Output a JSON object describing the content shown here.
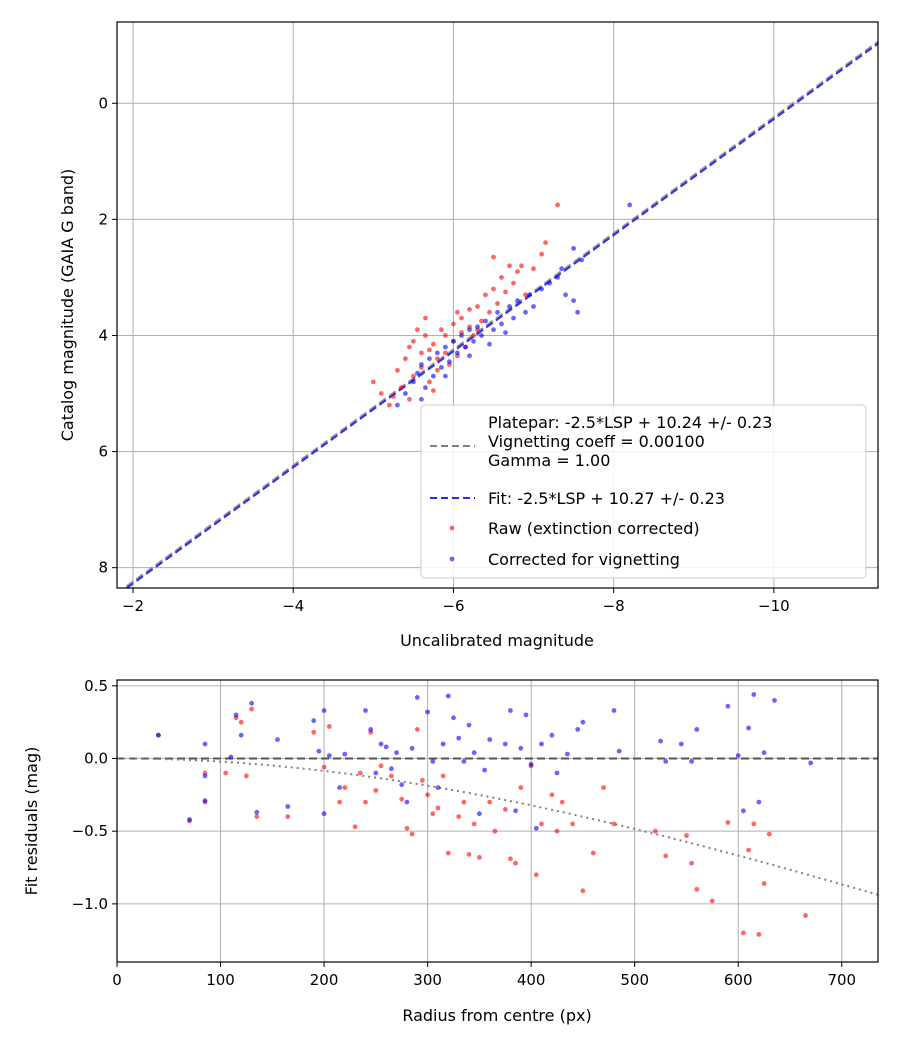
{
  "chart_data": [
    {
      "type": "scatter",
      "xlabel": "Uncalibrated magnitude",
      "ylabel": "Catalog magnitude (GAIA G band)",
      "xlim": [
        -1.8,
        -11.3
      ],
      "ylim": [
        8.35,
        -1.4
      ],
      "x_inverted": true,
      "y_inverted": true,
      "grid": true,
      "legend_placement": "lower-right",
      "xticks": [
        -2,
        -4,
        -6,
        -8,
        -10
      ],
      "yticks": [
        0,
        2,
        4,
        6,
        8
      ],
      "xtick_labels": [
        "−2",
        "−4",
        "−6",
        "−8",
        "−10"
      ],
      "ytick_labels": [
        "0",
        "2",
        "4",
        "6",
        "8"
      ],
      "lines": [
        {
          "name": "Platepar: -2.5*LSP + 10.24 +/- 0.23\nVignetting coeff = 0.00100\nGamma = 1.00",
          "slope": 1.0,
          "intercept": 10.24,
          "color": "#808080",
          "style": "dashed"
        },
        {
          "name": "Fit: -2.5*LSP + 10.27 +/- 0.23",
          "slope": 1.0,
          "intercept": 10.27,
          "color": "#2b2bd9",
          "style": "dashed"
        }
      ],
      "series": [
        {
          "name": "Raw (extinction corrected)",
          "color": "#ff0000",
          "points": [
            [
              -5.0,
              4.8
            ],
            [
              -5.1,
              5.0
            ],
            [
              -5.2,
              5.2
            ],
            [
              -5.3,
              4.6
            ],
            [
              -5.35,
              4.9
            ],
            [
              -5.4,
              4.4
            ],
            [
              -5.45,
              4.2
            ],
            [
              -5.5,
              4.1
            ],
            [
              -5.5,
              4.7
            ],
            [
              -5.55,
              3.9
            ],
            [
              -5.6,
              4.3
            ],
            [
              -5.6,
              4.55
            ],
            [
              -5.65,
              4.0
            ],
            [
              -5.7,
              4.25
            ],
            [
              -5.7,
              4.8
            ],
            [
              -5.75,
              4.15
            ],
            [
              -5.8,
              4.4
            ],
            [
              -5.8,
              4.6
            ],
            [
              -5.85,
              3.9
            ],
            [
              -5.9,
              4.0
            ],
            [
              -5.9,
              4.3
            ],
            [
              -5.95,
              4.5
            ],
            [
              -6.0,
              3.8
            ],
            [
              -6.0,
              4.1
            ],
            [
              -6.05,
              4.35
            ],
            [
              -6.1,
              3.7
            ],
            [
              -6.1,
              3.95
            ],
            [
              -6.15,
              4.2
            ],
            [
              -6.2,
              3.55
            ],
            [
              -6.2,
              3.85
            ],
            [
              -6.25,
              4.0
            ],
            [
              -6.3,
              3.5
            ],
            [
              -6.35,
              3.75
            ],
            [
              -6.4,
              3.3
            ],
            [
              -6.45,
              3.6
            ],
            [
              -6.5,
              3.2
            ],
            [
              -6.5,
              2.65
            ],
            [
              -6.55,
              3.45
            ],
            [
              -6.6,
              3.0
            ],
            [
              -6.65,
              3.25
            ],
            [
              -6.7,
              2.8
            ],
            [
              -6.75,
              3.1
            ],
            [
              -6.8,
              2.9
            ],
            [
              -6.85,
              2.8
            ],
            [
              -6.9,
              3.3
            ],
            [
              -7.0,
              2.85
            ],
            [
              -7.1,
              2.6
            ],
            [
              -7.15,
              2.4
            ],
            [
              -7.3,
              1.75
            ],
            [
              -5.25,
              5.05
            ],
            [
              -5.65,
              3.7
            ],
            [
              -5.75,
              4.95
            ],
            [
              -6.05,
              3.6
            ],
            [
              -6.3,
              3.9
            ],
            [
              -5.45,
              5.1
            ]
          ]
        },
        {
          "name": "Corrected for vignetting",
          "color": "#0000ff",
          "points": [
            [
              -5.3,
              5.2
            ],
            [
              -5.4,
              5.0
            ],
            [
              -5.5,
              4.8
            ],
            [
              -5.55,
              4.65
            ],
            [
              -5.6,
              4.5
            ],
            [
              -5.65,
              4.9
            ],
            [
              -5.7,
              4.4
            ],
            [
              -5.75,
              4.7
            ],
            [
              -5.8,
              4.3
            ],
            [
              -5.85,
              4.55
            ],
            [
              -5.9,
              4.2
            ],
            [
              -5.95,
              4.45
            ],
            [
              -6.0,
              4.1
            ],
            [
              -6.05,
              4.3
            ],
            [
              -6.1,
              4.0
            ],
            [
              -6.15,
              4.2
            ],
            [
              -6.2,
              3.9
            ],
            [
              -6.25,
              4.1
            ],
            [
              -6.3,
              3.85
            ],
            [
              -6.35,
              4.0
            ],
            [
              -6.4,
              3.75
            ],
            [
              -6.5,
              3.9
            ],
            [
              -6.55,
              3.6
            ],
            [
              -6.6,
              3.8
            ],
            [
              -6.7,
              3.5
            ],
            [
              -6.75,
              3.7
            ],
            [
              -6.8,
              3.4
            ],
            [
              -6.9,
              3.6
            ],
            [
              -6.95,
              3.3
            ],
            [
              -7.0,
              3.5
            ],
            [
              -7.1,
              3.2
            ],
            [
              -7.2,
              3.1
            ],
            [
              -7.3,
              3.0
            ],
            [
              -7.35,
              2.85
            ],
            [
              -7.4,
              3.3
            ],
            [
              -7.5,
              2.5
            ],
            [
              -7.5,
              3.4
            ],
            [
              -7.55,
              3.6
            ],
            [
              -7.6,
              2.7
            ],
            [
              -8.2,
              1.75
            ],
            [
              -5.6,
              5.1
            ],
            [
              -5.9,
              4.7
            ],
            [
              -6.2,
              4.35
            ],
            [
              -6.45,
              4.15
            ],
            [
              -6.65,
              3.95
            ]
          ]
        }
      ]
    },
    {
      "type": "scatter",
      "xlabel": "Radius from centre (px)",
      "ylabel": "Fit residuals (mag)",
      "xlim": [
        0,
        735
      ],
      "ylim": [
        -1.4,
        0.54
      ],
      "grid": true,
      "xticks": [
        0,
        100,
        200,
        300,
        400,
        500,
        600,
        700
      ],
      "yticks": [
        0.5,
        0.0,
        -0.5,
        -1.0
      ],
      "xtick_labels": [
        "0",
        "100",
        "200",
        "300",
        "400",
        "500",
        "600",
        "700"
      ],
      "ytick_labels": [
        "0.5",
        "0.0",
        "−0.5",
        "−1.0"
      ],
      "reference_lines": [
        {
          "y": 0.0,
          "color": "#555555",
          "style": "dashed"
        }
      ],
      "vignetting_curve": {
        "coeff": 0.001,
        "color": "#808080",
        "style": "dotted"
      },
      "series": [
        {
          "name": "Raw (extinction corrected)",
          "color": "#ff0000",
          "points": [
            [
              40,
              0.16
            ],
            [
              70,
              -0.43
            ],
            [
              85,
              -0.3
            ],
            [
              85,
              -0.1
            ],
            [
              105,
              -0.1
            ],
            [
              115,
              0.28
            ],
            [
              120,
              0.25
            ],
            [
              125,
              -0.12
            ],
            [
              130,
              0.34
            ],
            [
              135,
              -0.4
            ],
            [
              165,
              -0.4
            ],
            [
              190,
              0.18
            ],
            [
              200,
              -0.06
            ],
            [
              205,
              0.22
            ],
            [
              215,
              -0.3
            ],
            [
              220,
              -0.2
            ],
            [
              230,
              -0.47
            ],
            [
              235,
              -0.1
            ],
            [
              240,
              -0.3
            ],
            [
              245,
              0.18
            ],
            [
              250,
              -0.22
            ],
            [
              255,
              -0.05
            ],
            [
              265,
              -0.12
            ],
            [
              275,
              -0.28
            ],
            [
              280,
              -0.48
            ],
            [
              285,
              -0.52
            ],
            [
              290,
              0.2
            ],
            [
              295,
              -0.15
            ],
            [
              300,
              -0.25
            ],
            [
              305,
              -0.38
            ],
            [
              310,
              -0.34
            ],
            [
              315,
              -0.12
            ],
            [
              320,
              -0.65
            ],
            [
              330,
              -0.4
            ],
            [
              335,
              -0.3
            ],
            [
              340,
              -0.66
            ],
            [
              345,
              -0.45
            ],
            [
              350,
              -0.68
            ],
            [
              360,
              -0.3
            ],
            [
              365,
              -0.5
            ],
            [
              375,
              -0.35
            ],
            [
              380,
              -0.69
            ],
            [
              385,
              -0.72
            ],
            [
              390,
              -0.2
            ],
            [
              400,
              -0.05
            ],
            [
              405,
              -0.8
            ],
            [
              410,
              -0.45
            ],
            [
              420,
              -0.25
            ],
            [
              425,
              -0.5
            ],
            [
              430,
              -0.3
            ],
            [
              440,
              -0.45
            ],
            [
              450,
              -0.91
            ],
            [
              460,
              -0.65
            ],
            [
              470,
              -0.2
            ],
            [
              480,
              -0.45
            ],
            [
              520,
              -0.5
            ],
            [
              530,
              -0.67
            ],
            [
              550,
              -0.53
            ],
            [
              555,
              -0.72
            ],
            [
              560,
              -0.9
            ],
            [
              575,
              -0.98
            ],
            [
              590,
              -0.44
            ],
            [
              605,
              -1.2
            ],
            [
              610,
              -0.63
            ],
            [
              615,
              -0.45
            ],
            [
              620,
              -1.21
            ],
            [
              625,
              -0.86
            ],
            [
              630,
              -0.52
            ],
            [
              665,
              -1.08
            ]
          ]
        },
        {
          "name": "Corrected for vignetting",
          "color": "#0000ff",
          "points": [
            [
              40,
              0.16
            ],
            [
              70,
              -0.42
            ],
            [
              85,
              0.1
            ],
            [
              85,
              -0.12
            ],
            [
              85,
              -0.29
            ],
            [
              110,
              0.01
            ],
            [
              115,
              0.3
            ],
            [
              120,
              0.16
            ],
            [
              130,
              0.38
            ],
            [
              135,
              -0.37
            ],
            [
              155,
              0.13
            ],
            [
              165,
              -0.33
            ],
            [
              190,
              0.26
            ],
            [
              195,
              0.05
            ],
            [
              200,
              0.33
            ],
            [
              200,
              -0.38
            ],
            [
              205,
              0.02
            ],
            [
              215,
              -0.2
            ],
            [
              220,
              0.03
            ],
            [
              240,
              0.33
            ],
            [
              245,
              0.2
            ],
            [
              250,
              -0.1
            ],
            [
              255,
              0.1
            ],
            [
              260,
              0.08
            ],
            [
              265,
              -0.07
            ],
            [
              270,
              0.04
            ],
            [
              275,
              -0.18
            ],
            [
              280,
              -0.3
            ],
            [
              285,
              0.07
            ],
            [
              290,
              0.42
            ],
            [
              300,
              0.32
            ],
            [
              305,
              -0.02
            ],
            [
              310,
              -0.2
            ],
            [
              315,
              0.1
            ],
            [
              320,
              0.43
            ],
            [
              325,
              0.28
            ],
            [
              330,
              0.14
            ],
            [
              335,
              -0.02
            ],
            [
              340,
              0.23
            ],
            [
              345,
              0.04
            ],
            [
              350,
              -0.38
            ],
            [
              355,
              -0.08
            ],
            [
              360,
              0.13
            ],
            [
              375,
              0.1
            ],
            [
              380,
              0.33
            ],
            [
              385,
              -0.36
            ],
            [
              390,
              0.07
            ],
            [
              395,
              0.3
            ],
            [
              400,
              -0.04
            ],
            [
              405,
              -0.48
            ],
            [
              410,
              0.1
            ],
            [
              420,
              0.16
            ],
            [
              425,
              -0.1
            ],
            [
              435,
              0.03
            ],
            [
              445,
              0.2
            ],
            [
              450,
              0.25
            ],
            [
              480,
              0.33
            ],
            [
              485,
              0.05
            ],
            [
              525,
              0.12
            ],
            [
              530,
              -0.02
            ],
            [
              545,
              0.1
            ],
            [
              555,
              -0.02
            ],
            [
              560,
              0.2
            ],
            [
              590,
              0.36
            ],
            [
              600,
              0.02
            ],
            [
              605,
              -0.36
            ],
            [
              610,
              0.21
            ],
            [
              615,
              0.44
            ],
            [
              620,
              -0.3
            ],
            [
              625,
              0.04
            ],
            [
              635,
              0.4
            ],
            [
              670,
              -0.03
            ]
          ]
        }
      ]
    }
  ]
}
